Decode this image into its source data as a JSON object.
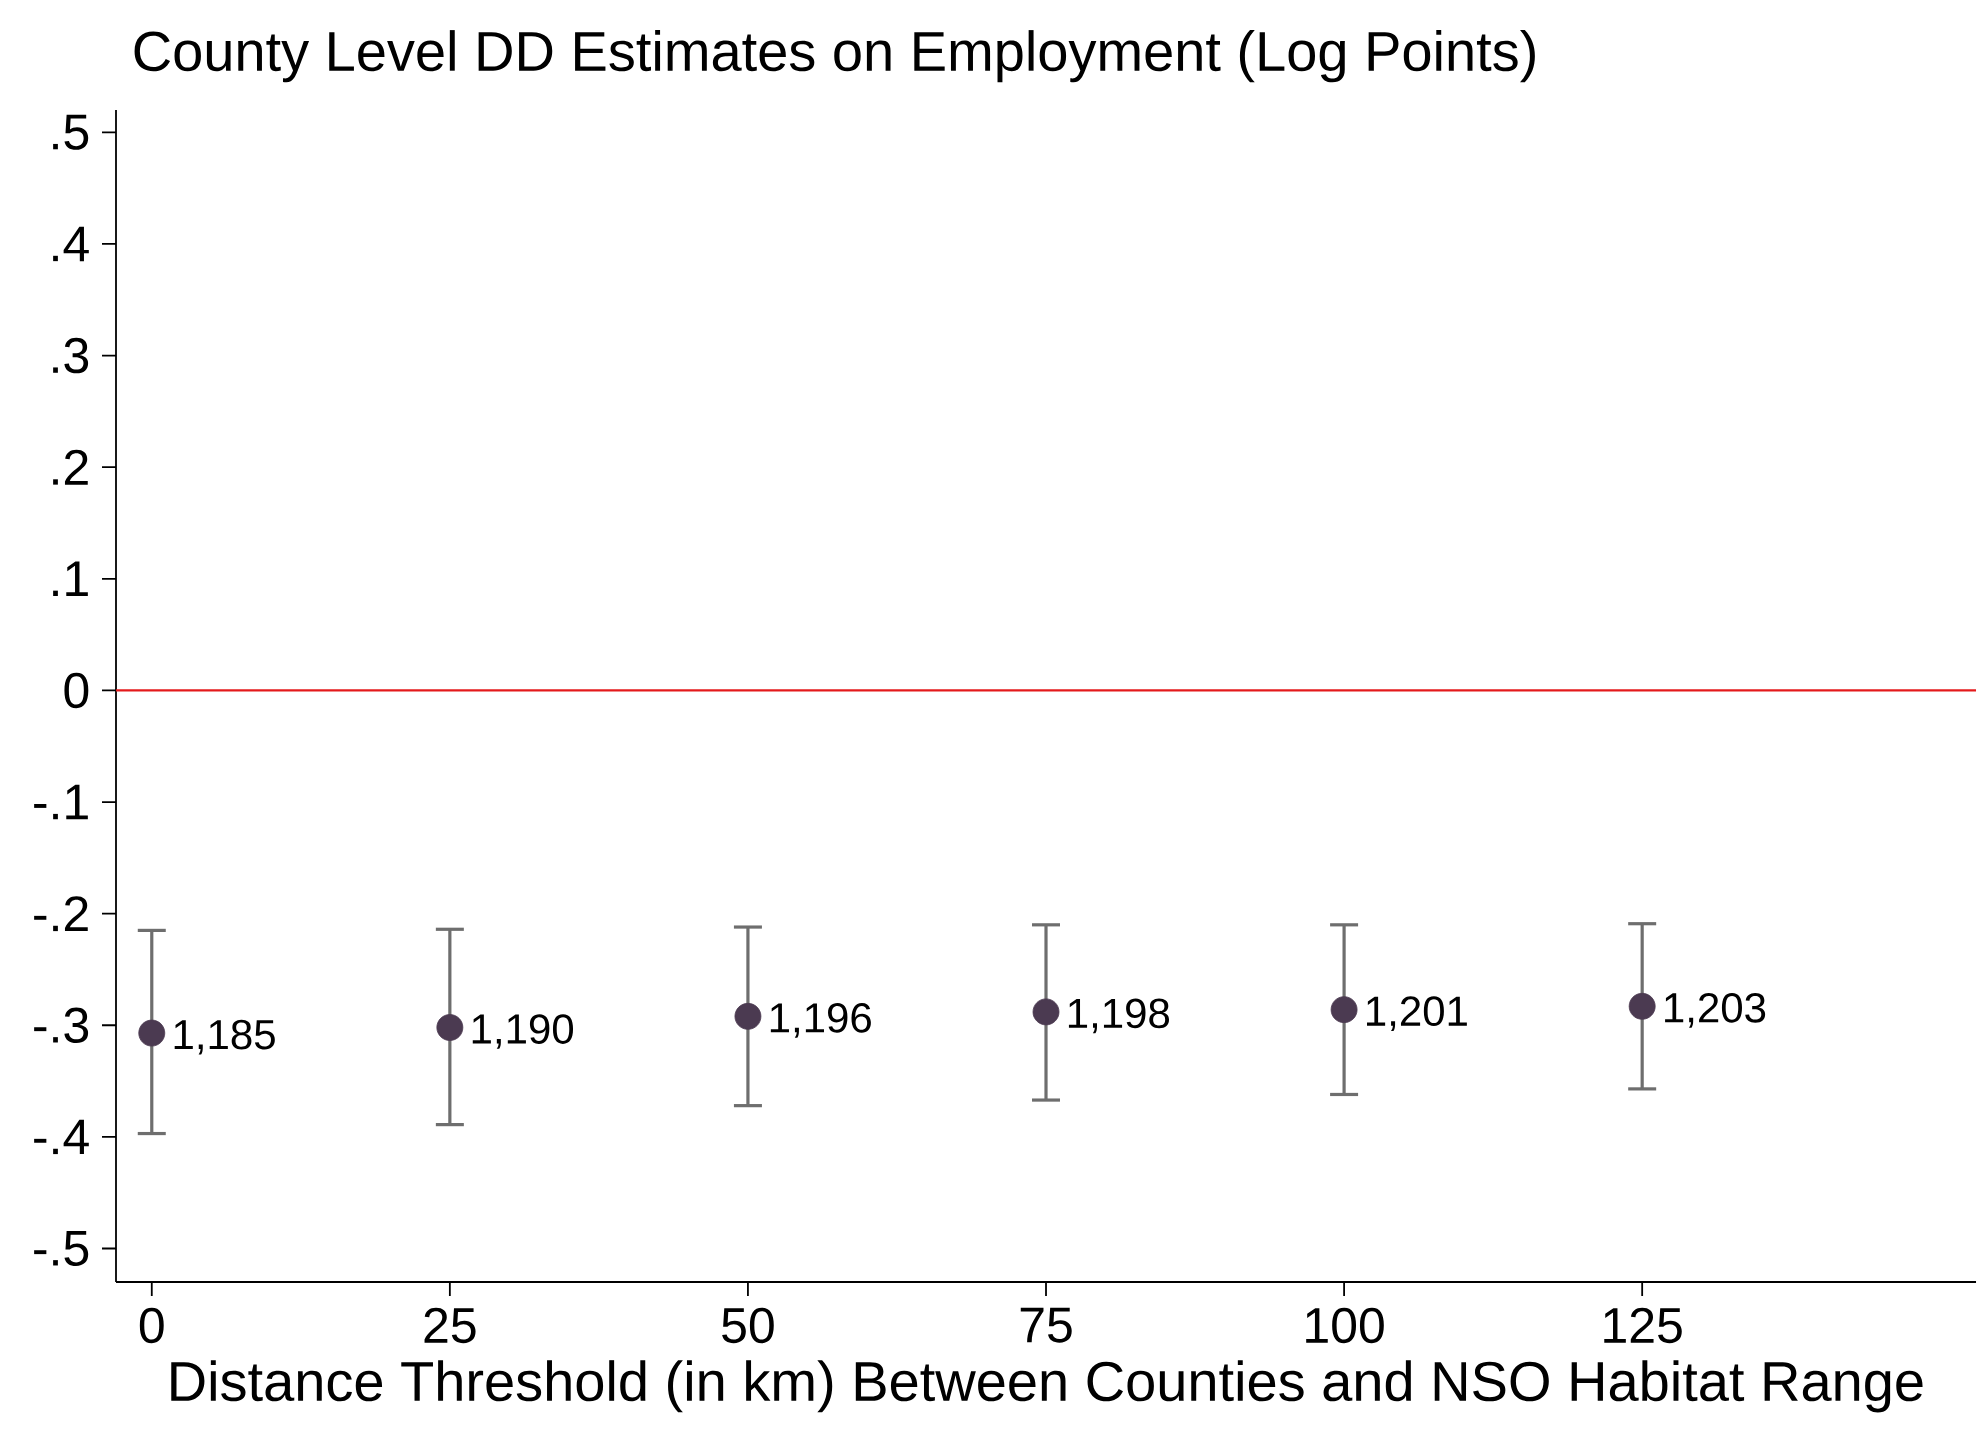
{
  "chart_data": {
    "type": "scatter",
    "title": "County Level DD Estimates on Employment (Log Points)",
    "xlabel": "Distance Threshold (in km) Between Counties and NSO Habitat Range",
    "x": [
      0,
      25,
      50,
      75,
      100,
      125
    ],
    "values": [
      -0.307,
      -0.302,
      -0.292,
      -0.288,
      -0.286,
      -0.283
    ],
    "errors": [
      [
        -0.397,
        -0.215
      ],
      [
        -0.389,
        -0.214
      ],
      [
        -0.372,
        -0.212
      ],
      [
        -0.367,
        -0.21
      ],
      [
        -0.362,
        -0.21
      ],
      [
        -0.357,
        -0.209
      ]
    ],
    "color": "#4b3a51",
    "marker": "circle",
    "xlim": [
      -3,
      153
    ],
    "xticks": [
      0,
      25,
      50,
      75,
      100,
      125
    ],
    "ylim": [
      -0.53,
      0.52
    ],
    "yticks": [
      {
        "value": -0.5,
        "label": "-.5"
      },
      {
        "value": -0.4,
        "label": "-.4"
      },
      {
        "value": -0.3,
        "label": "-.3"
      },
      {
        "value": -0.2,
        "label": "-.2"
      },
      {
        "value": -0.1,
        "label": "-.1"
      },
      0,
      {
        "value": 0.1,
        "label": ".1"
      },
      {
        "value": 0.2,
        "label": ".2"
      },
      {
        "value": 0.3,
        "label": ".3"
      },
      {
        "value": 0.4,
        "label": ".4"
      },
      {
        "value": 0.5,
        "label": ".5"
      }
    ],
    "ref_lines": [
      {
        "axis": "y",
        "value": 0,
        "color": "#e41a1c"
      }
    ],
    "annotations": [
      {
        "text": "1,185",
        "x": 0,
        "y": -0.307
      },
      {
        "text": "1,190",
        "x": 25,
        "y": -0.302
      },
      {
        "text": "1,196",
        "x": 50,
        "y": -0.292
      },
      {
        "text": "1,198",
        "x": 75,
        "y": -0.288
      },
      {
        "text": "1,201",
        "x": 100,
        "y": -0.286
      },
      {
        "text": "1,203",
        "x": 125,
        "y": -0.283
      }
    ],
    "grid": false
  }
}
